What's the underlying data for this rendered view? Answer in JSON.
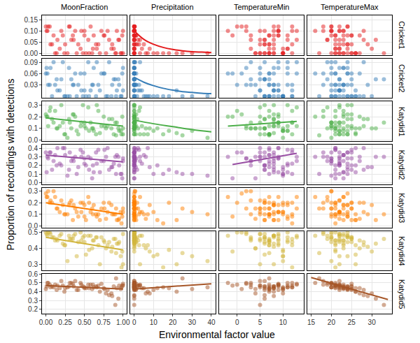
{
  "chart_data": {
    "type": "scatter",
    "marker": "circle",
    "grid": true,
    "x_label": "Environmental factor value",
    "y_label": "Proportion of recordings with detections",
    "columns": [
      {
        "name": "MoonFraction",
        "xlim": [
          -0.05,
          1.05
        ],
        "xticks": [
          {
            "value": 0,
            "label": "0.00"
          },
          {
            "value": 0.25,
            "label": "0.25"
          },
          {
            "value": 0.5,
            "label": "0.50"
          },
          {
            "value": 0.75,
            "label": "0.75"
          },
          {
            "value": 1,
            "label": "1.00"
          }
        ],
        "x": [
          0.02,
          0.05,
          0.1,
          0.15,
          0.2,
          0.25,
          0.3,
          0.35,
          0.4,
          0.45,
          0.5,
          0.55,
          0.6,
          0.65,
          0.7,
          0.75,
          0.8,
          0.85,
          0.9,
          0.95,
          0.98,
          1.0,
          0.0,
          0.08,
          0.12,
          0.18,
          0.22,
          0.28,
          0.33,
          0.38,
          0.42,
          0.48,
          0.52,
          0.58,
          0.62,
          0.68,
          0.72,
          0.78,
          0.82,
          0.88,
          0.92,
          0.97,
          0.99,
          0.03,
          0.06,
          0.14,
          0.24,
          0.36,
          0.46,
          0.56,
          0.66,
          0.76,
          0.86,
          0.94,
          1.0,
          0.01,
          0.31,
          0.61,
          0.91,
          0.5
        ]
      },
      {
        "name": "Precipitation",
        "xlim": [
          -2,
          42
        ],
        "xticks": [
          0,
          10,
          20,
          30,
          40
        ],
        "x": [
          0,
          0,
          0.5,
          2,
          0,
          5,
          0,
          1,
          10,
          0,
          0,
          3,
          0,
          0,
          22,
          0,
          0.2,
          8,
          0,
          0,
          15,
          0,
          0,
          1.5,
          0,
          4,
          0,
          38,
          0,
          0,
          0.8,
          0,
          12,
          0,
          0,
          2.5,
          0,
          6,
          0,
          0,
          0,
          30,
          0,
          0.3,
          0,
          0,
          7,
          0,
          0,
          18,
          0,
          1,
          0,
          0,
          3,
          0,
          0,
          0,
          25,
          0
        ]
      },
      {
        "name": "TemperatureMin",
        "xlim": [
          -4,
          14.5
        ],
        "xticks": [
          0,
          5,
          10
        ],
        "x": [
          -2,
          0,
          3,
          5,
          6,
          7,
          8,
          9,
          10,
          11,
          12,
          13,
          4,
          6,
          8,
          7,
          9,
          10,
          5,
          11,
          12,
          2,
          1,
          6,
          7,
          8,
          9,
          10,
          3,
          5,
          7,
          8,
          6,
          9,
          11,
          12,
          13,
          4,
          6,
          7,
          8,
          10,
          -1,
          2,
          5,
          6,
          7,
          8,
          9,
          10,
          11,
          7,
          8,
          6,
          5,
          9,
          12,
          3,
          7,
          8
        ]
      },
      {
        "name": "TemperatureMax",
        "xlim": [
          14,
          35
        ],
        "xticks": [
          15,
          20,
          25,
          30
        ],
        "x": [
          16,
          18,
          20,
          21,
          22,
          23,
          24,
          25,
          22,
          21,
          20,
          19,
          23,
          24,
          26,
          27,
          28,
          30,
          33,
          22,
          21,
          20,
          24,
          25,
          23,
          22,
          21,
          20,
          19,
          18,
          24,
          25,
          26,
          22,
          23,
          21,
          20,
          27,
          28,
          22,
          23,
          24,
          21,
          20,
          22,
          25,
          26,
          23,
          22,
          21,
          24,
          25,
          29,
          31,
          22,
          23,
          20,
          21,
          17,
          24
        ]
      }
    ],
    "series": [
      {
        "name": "Cricket1",
        "color": "#E41A1C",
        "ylim": [
          -0.008,
          0.17
        ],
        "yticks": [
          {
            "value": 0,
            "label": "0.00"
          },
          {
            "value": 0.05,
            "label": "0.05"
          },
          {
            "value": 0.1,
            "label": "0.10"
          },
          {
            "value": 0.15,
            "label": "0.15"
          }
        ],
        "values": [
          0.1,
          0.12,
          0.08,
          0.06,
          0.1,
          0.04,
          0.12,
          0.08,
          0,
          0.02,
          0.1,
          0.06,
          0,
          0.04,
          0,
          0.08,
          0.1,
          0.02,
          0,
          0.06,
          0,
          0.1,
          0.12,
          0.04,
          0,
          0.02,
          0.08,
          0,
          0.06,
          0.1,
          0.04,
          0,
          0,
          0.12,
          0.08,
          0.04,
          0.1,
          0,
          0.06,
          0.02,
          0.1,
          0,
          0.08,
          0.12,
          0.04,
          0,
          0,
          0.06,
          0.1,
          0,
          0.02,
          0.08,
          0.04,
          0.06,
          0,
          0.1,
          0.12,
          0.02,
          0,
          0.08
        ],
        "fits": [
          {
            "column": "Precipitation",
            "x": [
              0,
              5,
              10,
              15,
              20,
              25,
              30,
              35,
              40
            ],
            "values": [
              0.1,
              0.062,
              0.04,
              0.026,
              0.017,
              0.011,
              0.007,
              0.005,
              0.003
            ]
          }
        ]
      },
      {
        "name": "Cricket2",
        "color": "#377EB8",
        "ylim": [
          -0.005,
          0.1
        ],
        "yticks": [
          {
            "value": 0.03,
            "label": "0.03"
          },
          {
            "value": 0.06,
            "label": "0.06"
          },
          {
            "value": 0.09,
            "label": "0.09"
          }
        ],
        "values": [
          0.06,
          0.03,
          0.09,
          0.015,
          0.045,
          0,
          0.075,
          0.03,
          0,
          0.06,
          0.015,
          0.09,
          0.03,
          0,
          0.015,
          0.06,
          0,
          0,
          0.045,
          0.03,
          0,
          0.075,
          0.06,
          0,
          0.03,
          0.015,
          0.09,
          0,
          0.045,
          0.06,
          0.03,
          0,
          0,
          0.015,
          0.075,
          0.03,
          0.06,
          0,
          0.09,
          0.045,
          0.015,
          0,
          0.06,
          0.03,
          0.075,
          0.045,
          0,
          0.03,
          0.015,
          0,
          0.09,
          0.06,
          0.03,
          0.045,
          0.015,
          0.075,
          0,
          0.03,
          0,
          0.06
        ],
        "fits": [
          {
            "column": "Precipitation",
            "x": [
              0,
              5,
              10,
              15,
              20,
              25,
              30,
              35,
              40
            ],
            "values": [
              0.05,
              0.037,
              0.028,
              0.021,
              0.016,
              0.012,
              0.01,
              0.008,
              0.007
            ]
          }
        ]
      },
      {
        "name": "Katydid1",
        "color": "#4DAF4A",
        "ylim": [
          -0.01,
          0.33
        ],
        "yticks": [
          {
            "value": 0,
            "label": "0.0"
          },
          {
            "value": 0.1,
            "label": "0.1"
          },
          {
            "value": 0.2,
            "label": "0.2"
          },
          {
            "value": 0.3,
            "label": "0.3"
          }
        ],
        "values": [
          0.2,
          0.25,
          0.15,
          0.1,
          0.3,
          0.05,
          0.18,
          0.22,
          0.08,
          0.12,
          0.15,
          0.28,
          0.1,
          0.05,
          0.06,
          0.2,
          0.12,
          0.1,
          0.15,
          0.08,
          0.05,
          0.1,
          0.22,
          0.18,
          0.25,
          0.12,
          0.15,
          0.02,
          0.1,
          0.2,
          0.05,
          0.3,
          0.1,
          0.15,
          0.08,
          0.25,
          0.12,
          0.1,
          0.18,
          0.05,
          0.15,
          0.08,
          0.2,
          0.12,
          0.28,
          0.1,
          0.05,
          0.22,
          0.15,
          0.08,
          0.3,
          0.12,
          0.18,
          0.1,
          0.05,
          0.2,
          0.15,
          0.1,
          0.04,
          0.12
        ],
        "fits": [
          {
            "column": "MoonFraction",
            "x": [
              0,
              1
            ],
            "values": [
              0.19,
              0.12
            ]
          },
          {
            "column": "Precipitation",
            "x": [
              0,
              10,
              20,
              30,
              40
            ],
            "values": [
              0.17,
              0.14,
              0.115,
              0.09,
              0.07
            ]
          },
          {
            "column": "TemperatureMin",
            "x": [
              -2,
              13
            ],
            "values": [
              0.12,
              0.16
            ]
          }
        ]
      },
      {
        "name": "Katydid2",
        "color": "#984EA3",
        "ylim": [
          -0.02,
          0.44
        ],
        "yticks": [
          {
            "value": 0,
            "label": "0.0"
          },
          {
            "value": 0.1,
            "label": "0.1"
          },
          {
            "value": 0.2,
            "label": "0.2"
          },
          {
            "value": 0.3,
            "label": "0.3"
          },
          {
            "value": 0.4,
            "label": "0.4"
          }
        ],
        "values": [
          0.3,
          0.35,
          0.25,
          0.4,
          0.2,
          0.32,
          0.15,
          0.28,
          0.1,
          0.38,
          0.22,
          0.3,
          0.05,
          0.35,
          0.12,
          0.25,
          0.4,
          0.18,
          0.3,
          0.2,
          0.1,
          0.28,
          0.35,
          0.15,
          0.32,
          0.22,
          0.4,
          0.08,
          0.25,
          0.3,
          0.18,
          0.35,
          0.2,
          0.28,
          0.12,
          0.38,
          0.25,
          0.3,
          0.15,
          0.22,
          0.32,
          0.1,
          0.05,
          0.28,
          0.35,
          0.2,
          0.4,
          0.25,
          0.3,
          0.15,
          0.22,
          0.38,
          0.18,
          0.3,
          0.25,
          0.12,
          0.35,
          0.2,
          0.1,
          0.28
        ],
        "fits": [
          {
            "column": "MoonFraction",
            "x": [
              0,
              1
            ],
            "values": [
              0.32,
              0.24
            ]
          },
          {
            "column": "TemperatureMin",
            "x": [
              -1,
              13
            ],
            "values": [
              0.21,
              0.34
            ]
          }
        ]
      },
      {
        "name": "Katydid3",
        "color": "#FF7F00",
        "ylim": [
          -0.015,
          0.33
        ],
        "yticks": [
          {
            "value": 0,
            "label": "0.0"
          },
          {
            "value": 0.1,
            "label": "0.1"
          },
          {
            "value": 0.2,
            "label": "0.2"
          },
          {
            "value": 0.3,
            "label": "0.3"
          }
        ],
        "values": [
          0.25,
          0.2,
          0.3,
          0.15,
          0.22,
          0.1,
          0.18,
          0.05,
          0.12,
          0.2,
          0.08,
          0.25,
          0.15,
          0.1,
          0.05,
          0.2,
          0.12,
          0.18,
          0.1,
          0.06,
          0.02,
          0.15,
          0.28,
          0.2,
          0.25,
          0.12,
          0.18,
          0.1,
          0.22,
          0.15,
          0.08,
          0.2,
          0.05,
          0.12,
          0.18,
          0.1,
          0.15,
          0.06,
          0.2,
          0.1,
          0.05,
          0.12,
          0.08,
          0.3,
          0.22,
          0.15,
          0.1,
          0.18,
          0.12,
          0.2,
          0.08,
          0.15,
          0.1,
          0.05,
          0.12,
          0.25,
          0.2,
          0.1,
          0.15,
          0.18
        ],
        "fits": [
          {
            "column": "MoonFraction",
            "x": [
              0,
              1
            ],
            "values": [
              0.2,
              0.1
            ]
          }
        ]
      },
      {
        "name": "Katydid4",
        "color": "#D1B53C",
        "ylim": [
          0.26,
          0.51
        ],
        "yticks": [
          {
            "value": 0.3,
            "label": "0.3"
          },
          {
            "value": 0.4,
            "label": "0.4"
          },
          {
            "value": 0.5,
            "label": "0.5"
          }
        ],
        "values": [
          0.48,
          0.5,
          0.47,
          0.45,
          0.49,
          0.42,
          0.48,
          0.46,
          0.35,
          0.5,
          0.44,
          0.48,
          0.4,
          0.47,
          0.3,
          0.45,
          0.42,
          0.38,
          0.46,
          0.44,
          0.28,
          0.49,
          0.5,
          0.47,
          0.45,
          0.48,
          0.43,
          0.32,
          0.46,
          0.49,
          0.44,
          0.47,
          0.36,
          0.48,
          0.45,
          0.42,
          0.47,
          0.4,
          0.44,
          0.46,
          0.43,
          0.35,
          0.38,
          0.5,
          0.49,
          0.46,
          0.42,
          0.48,
          0.45,
          0.39,
          0.47,
          0.44,
          0.41,
          0.43,
          0.3,
          0.49,
          0.46,
          0.45,
          0.37,
          0.48
        ],
        "fits": [
          {
            "column": "MoonFraction",
            "x": [
              0,
              1
            ],
            "values": [
              0.47,
              0.39
            ]
          }
        ]
      },
      {
        "name": "Katydid5",
        "color": "#A65628",
        "ylim": [
          0.15,
          0.6
        ],
        "yticks": [
          {
            "value": 0.2,
            "label": "0.2"
          },
          {
            "value": 0.3,
            "label": "0.3"
          },
          {
            "value": 0.4,
            "label": "0.4"
          },
          {
            "value": 0.5,
            "label": "0.5"
          },
          {
            "value": 0.6,
            "label": "0.6"
          }
        ],
        "values": [
          0.5,
          0.48,
          0.45,
          0.47,
          0.52,
          0.44,
          0.46,
          0.49,
          0.42,
          0.5,
          0.45,
          0.48,
          0.43,
          0.46,
          0.4,
          0.44,
          0.42,
          0.38,
          0.25,
          0.47,
          0.45,
          0.49,
          0.43,
          0.46,
          0.48,
          0.44,
          0.47,
          0.45,
          0.5,
          0.52,
          0.42,
          0.46,
          0.44,
          0.48,
          0.45,
          0.47,
          0.49,
          0.38,
          0.36,
          0.46,
          0.44,
          0.43,
          0.47,
          0.5,
          0.45,
          0.42,
          0.4,
          0.46,
          0.48,
          0.44,
          0.45,
          0.43,
          0.35,
          0.32,
          0.47,
          0.46,
          0.5,
          0.48,
          0.55,
          0.44
        ],
        "fits": [
          {
            "column": "MoonFraction",
            "x": [
              0,
              1
            ],
            "values": [
              0.47,
              0.43
            ]
          },
          {
            "column": "Precipitation",
            "x": [
              0,
              40
            ],
            "values": [
              0.43,
              0.49
            ]
          },
          {
            "column": "TemperatureMax",
            "x": [
              15,
              34
            ],
            "values": [
              0.56,
              0.31
            ]
          }
        ]
      }
    ]
  }
}
